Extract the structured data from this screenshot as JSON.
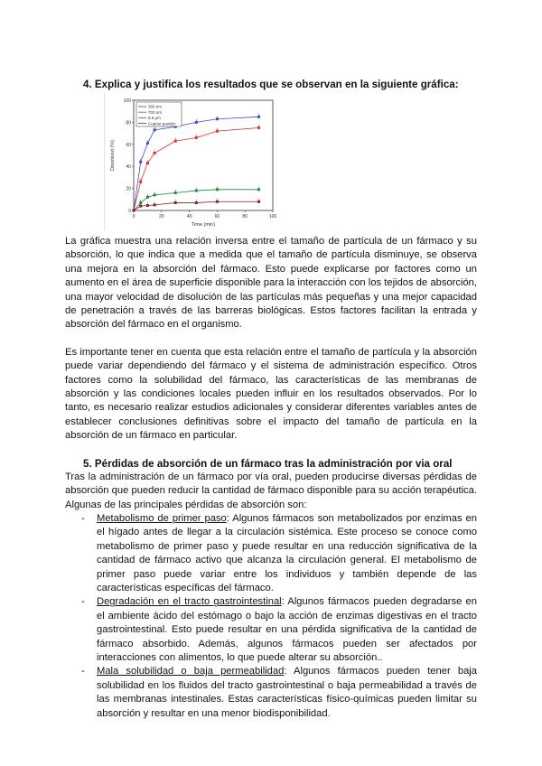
{
  "q4": {
    "heading": "4.  Explica y justifica los resultados que se observan en la siguiente gráfica:",
    "p1": "La gráfica muestra una relación inversa entre el tamaño de partícula de un fármaco y su absorción, lo que indica que a medida que el tamaño de partícula disminuye, se observa una mejora en la absorción del fármaco. Esto puede explicarse por factores como un aumento en el área de superficie disponible para la interacción con los tejidos de absorción, una mayor velocidad de disolución de las partículas más pequeñas y una mejor capacidad de penetración a través de las barreras biológicas. Estos factores facilitan la entrada y absorción del fármaco en el organismo.",
    "p2": "Es importante tener en cuenta que esta relación entre el tamaño de partícula y la absorción puede variar dependiendo del fármaco y el sistema de administración específico. Otros factores como la solubilidad del fármaco, las características de las membranas de absorción y las condiciones locales pueden influir en los resultados observados. Por lo tanto, es necesario realizar estudios adicionales y considerar diferentes variables antes de establecer conclusiones definitivas sobre el impacto del tamaño de partícula en la absorción de un fármaco en particular."
  },
  "q5": {
    "heading": "5.  Pérdidas de absorción de un fármaco tras la administración por via oral",
    "intro": "Tras la administración de un fármaco por vía oral, pueden producirse diversas pérdidas de absorción que pueden reducir la cantidad de fármaco disponible para su acción terapéutica. Algunas de las principales pérdidas de absorción son:",
    "items": [
      {
        "term": "Metabolismo de primer paso",
        "text": ": Algunos fármacos son metabolizados por enzimas en el hígado antes de llegar a la circulación sistémica. Este proceso se conoce como metabolismo de primer paso y puede resultar en una reducción significativa de la cantidad de fármaco activo que alcanza la circulación general. El metabolismo de primer paso puede variar entre los individuos y también depende de las características específicas del fármaco."
      },
      {
        "term": "Degradación en el tracto gastrointestinal",
        "text": ": Algunos fármacos pueden degradarse en el ambiente ácido del estómago o bajo la acción de enzimas digestivas en el tracto gastrointestinal. Esto puede resultar en una pérdida significativa de la cantidad de fármaco absorbido. Además, algunos fármacos pueden ser afectados por interacciones con alimentos, lo que puede alterar su absorción.."
      },
      {
        "term": "Mala solubilidad o baja permeabilidad",
        "text": ": Algunos fármacos pueden tener baja solubilidad en los fluidos del tracto gastrointestinal o baja permeabilidad a través de las membranas intestinales. Estas características físico-químicas pueden limitar su absorción y resultar en una menor biodisponibilidad."
      }
    ]
  },
  "chart_data": {
    "type": "line",
    "xlabel": "Time (min)",
    "ylabel": "Dissolved (%)",
    "xlim": [
      0,
      100
    ],
    "ylim": [
      0,
      100
    ],
    "xticks": [
      0,
      20,
      40,
      60,
      80,
      100
    ],
    "yticks": [
      0,
      20,
      40,
      60,
      80,
      100
    ],
    "legend": "top-left",
    "grid": false,
    "x": [
      0,
      5,
      10,
      15,
      30,
      45,
      60,
      90
    ],
    "series": [
      {
        "name": "300 nm",
        "color": "#3a4fc0",
        "marker": "diamond",
        "values": [
          0,
          44,
          61,
          73,
          76,
          80,
          83,
          85
        ]
      },
      {
        "name": "700 nm",
        "color": "#e03030",
        "marker": "circle",
        "values": [
          0,
          26,
          43,
          52,
          63,
          66,
          72,
          75
        ]
      },
      {
        "name": "5.6 µm",
        "color": "#1f8a3a",
        "marker": "square",
        "values": [
          0,
          7,
          12,
          14,
          16,
          18,
          19,
          19
        ]
      },
      {
        "name": "Coarse powder",
        "color": "#8a2020",
        "marker": "triangle",
        "values": [
          0,
          4,
          4.5,
          5,
          7,
          7,
          8,
          8
        ]
      }
    ]
  }
}
